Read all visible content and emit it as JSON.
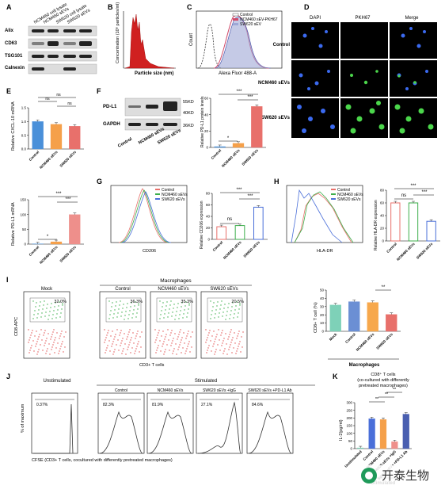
{
  "panels": {
    "A": {
      "letter": "A",
      "col_labels": [
        "NCM460 cell lysate",
        "NCM460 sEVs",
        "SW620 cell lysate",
        "SW620 sEVs"
      ],
      "row_labels": [
        "Alix",
        "CD63",
        "TSG101",
        "Calnexin"
      ]
    },
    "B": {
      "letter": "B",
      "ylabel": "Concentration (10⁶ particles/ml)",
      "xlabel": "Particle size (nm)"
    },
    "C": {
      "letter": "C",
      "ylabel": "Count",
      "xlabel": "Alexa Fluor 488-A",
      "legend": [
        "Control",
        "NCM460 sEV-PKH67",
        "SW620 sEV"
      ]
    },
    "D": {
      "letter": "D",
      "cols": [
        "DAPI",
        "PKH67",
        "Merge"
      ],
      "rows": [
        "Control",
        "NCM460 sEVs",
        "SW620 sEVs"
      ]
    },
    "E": {
      "letter": "E",
      "ylabel": "Relative CXCL-10 mRNA",
      "ns1": "ns",
      "ns2": "ns",
      "ns3": "ns"
    },
    "E2": {
      "ylabel": "Relative PD-L1 mRNA",
      "sig1": "*",
      "sig2": "***",
      "sig3": "***"
    },
    "F": {
      "letter": "F",
      "blot_labels": [
        "PD-L1",
        "GAPDH"
      ],
      "sizes": [
        "55KD",
        "40KD",
        "36KD"
      ],
      "blot_cols": [
        "Control",
        "NCM460 sEVs",
        "SW620 sEVs"
      ],
      "ylabel": "Relative PD-L1 protein levels",
      "sig1": "*",
      "sig2": "***",
      "sig3": "***"
    },
    "G": {
      "letter": "G",
      "xlabel": "CD206",
      "legend": [
        "Control",
        "NCM460 sEVs",
        "SW620 sEVs"
      ],
      "ylabel": "Relative CD206 expression",
      "sig1": "ns",
      "sig2": "***",
      "sig3": "***"
    },
    "H": {
      "letter": "H",
      "xlabel": "HLA-DR",
      "legend": [
        "Control",
        "NCM460 sEVs",
        "SW620 sEVs"
      ],
      "ylabel": "Relative HLA-DR expression",
      "sig1": "ns",
      "sig2": "***",
      "sig3": "***"
    },
    "I": {
      "letter": "I",
      "header": "Macrophages",
      "plots": [
        {
          "title": "Mock",
          "pct": "32.0%"
        },
        {
          "title": "Control",
          "pct": "36.3%"
        },
        {
          "title": "NCM460 sEVs",
          "pct": "35.3%"
        },
        {
          "title": "SW620 sEVs",
          "pct": "20.5%"
        }
      ],
      "ylabel": "CD8-APC",
      "xlabel": "CD3+ T cells",
      "bar_ylabel": "CD8+ T cell (%)",
      "bar_group": "Macrophages",
      "sig": "**"
    },
    "J": {
      "letter": "J",
      "header_left": "Unstimulated",
      "header_right": "Stimulated",
      "plots": [
        {
          "title": "",
          "pct": "0.37%"
        },
        {
          "title": "Control",
          "pct": "82.3%"
        },
        {
          "title": "NCM460 sEVs",
          "pct": "81.9%"
        },
        {
          "title": "SW620 sEVs +IgG",
          "pct": "27.1%"
        },
        {
          "title": "SW620 sEVs +PD-L1 Ab",
          "pct": "84.6%"
        }
      ],
      "ylabel": "% of maximum",
      "xlabel": "CFSE (CD3+ T cells, cocultured with differently pretreated macrophages)"
    },
    "K": {
      "letter": "K",
      "title1": "CD8⁺ T cells",
      "title2": "(co-cultured with differently",
      "title3": "pretreated macrophages)",
      "ylabel": "IL-2(pg/ml)",
      "group": "Stimulated",
      "sig1": "**",
      "sig2": "**",
      "sig3": "**"
    }
  },
  "chart_data": [
    {
      "type": "bar",
      "panel": "E",
      "categories": [
        "Control",
        "NCM460 sEVs",
        "SW620 sEVs"
      ],
      "values": [
        1.0,
        0.9,
        0.83
      ],
      "ylim": [
        0,
        1.5
      ],
      "yticks": [
        "0.0",
        "0.5",
        "1.0",
        "1.5"
      ],
      "colors": [
        "#4a90d9",
        "#f5a04a",
        "#e8706b"
      ]
    },
    {
      "type": "bar",
      "panel": "E2",
      "categories": [
        "Control",
        "NCM460 sEVs",
        "SW620 sEVs"
      ],
      "values": [
        1,
        8,
        100
      ],
      "ylim": [
        0,
        150
      ],
      "yticks": [
        "0",
        "50",
        "100",
        "150"
      ],
      "colors": [
        "#4a90d9",
        "#f5a04a",
        "#ee8f8b"
      ]
    },
    {
      "type": "bar",
      "panel": "F",
      "categories": [
        "Control",
        "NCM460 sEVs",
        "SW620 sEVs"
      ],
      "values": [
        1,
        5,
        50
      ],
      "ylim": [
        0,
        60
      ],
      "yticks": [
        "0",
        "20",
        "40",
        "60"
      ],
      "colors": [
        "#4a90d9",
        "#f5a04a",
        "#e8706b"
      ]
    },
    {
      "type": "bar",
      "panel": "G",
      "categories": [
        "Control",
        "NCM460 sEVs",
        "SW620 sEVs"
      ],
      "values": [
        22,
        24,
        56
      ],
      "ylim": [
        0,
        80
      ],
      "yticks": [
        "0",
        "20",
        "40",
        "60",
        "80"
      ],
      "colors": [
        "#e8706b",
        "#3cae4b",
        "#4a6fd9"
      ]
    },
    {
      "type": "bar",
      "panel": "H",
      "categories": [
        "Control",
        "NCM460 sEVs",
        "SW620 sEVs"
      ],
      "values": [
        60,
        60,
        31
      ],
      "ylim": [
        0,
        80
      ],
      "yticks": [
        "0",
        "20",
        "40",
        "60",
        "80"
      ],
      "colors": [
        "#e8706b",
        "#3cae4b",
        "#4a6fd9"
      ]
    },
    {
      "type": "bar",
      "panel": "I",
      "categories": [
        "Mock",
        "Control",
        "NCM460 sEVs",
        "SW620 sEVs"
      ],
      "values": [
        32,
        36,
        35,
        20.5
      ],
      "ylim": [
        0,
        50
      ],
      "yticks": [
        "0",
        "10",
        "20",
        "30",
        "40",
        "50"
      ],
      "colors": [
        "#7ed1b8",
        "#6b8fd4",
        "#f7a84c",
        "#e8706b"
      ]
    },
    {
      "type": "bar",
      "panel": "K",
      "categories": [
        "Unstimulated",
        "Control",
        "NCM460 sEVs",
        "SW620 sEVs +IgG",
        "SW620 sEVs +PD-L1 Ab"
      ],
      "values": [
        5,
        195,
        190,
        45,
        225
      ],
      "ylim": [
        0,
        300
      ],
      "yticks": [
        "0",
        "50",
        "100",
        "150",
        "200",
        "250",
        "300"
      ],
      "colors": [
        "#7ed1b8",
        "#4a6fd9",
        "#f5a04a",
        "#ee8f8b",
        "#4a5fb0"
      ]
    }
  ],
  "watermark": {
    "text": "开泰生物",
    "logo": "kaitai-logo"
  }
}
